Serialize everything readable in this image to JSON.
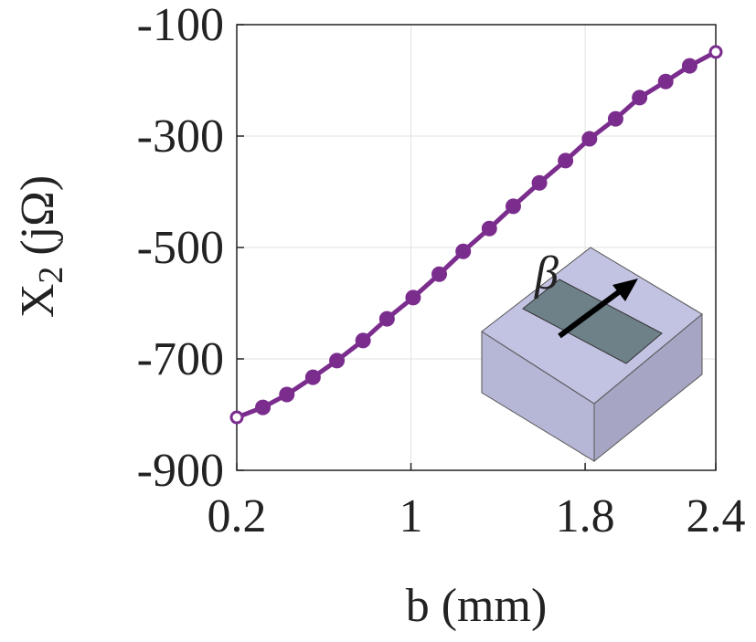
{
  "chart_data": {
    "type": "line",
    "x_label": "b (mm)",
    "y_label": "X",
    "y_label_subscript": "2",
    "y_label_suffix": "(jΩ)",
    "annotation": "β",
    "x": [
      0.2,
      0.32,
      0.43,
      0.55,
      0.66,
      0.78,
      0.89,
      1.01,
      1.13,
      1.24,
      1.36,
      1.47,
      1.59,
      1.71,
      1.82,
      1.94,
      2.05,
      2.17,
      2.28,
      2.4
    ],
    "series": [
      {
        "color": "#7b2d8e",
        "values": [
          -805,
          -787,
          -764,
          -733,
          -703,
          -667,
          -628,
          -590,
          -548,
          -507,
          -466,
          -426,
          -384,
          -344,
          -305,
          -269,
          -231,
          -202,
          -174,
          -149
        ]
      }
    ],
    "xlim": [
      0.2,
      2.4
    ],
    "xticks": [
      0.2,
      1,
      1.8,
      2.4
    ],
    "ylim": [
      -900,
      -100
    ],
    "yticks": [
      -100,
      -300,
      -500,
      -700,
      -900
    ],
    "grid": true
  }
}
